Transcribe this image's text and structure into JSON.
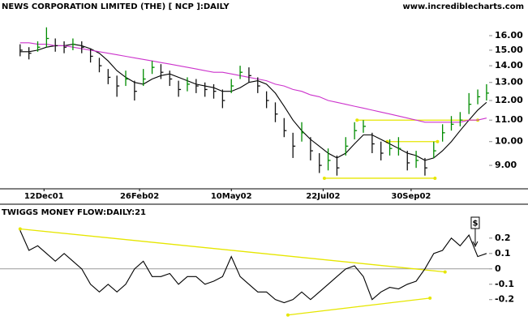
{
  "chart_data": [
    {
      "type": "ohlc",
      "title": "NEWS CORPORATION LIMITED (THE) [ NCP ]:DAILY",
      "source": "www.incrediblecharts.com",
      "x": [
        "2001-11-23",
        "2001-11-30",
        "2001-12-07",
        "2001-12-14",
        "2001-12-21",
        "2001-12-28",
        "2002-01-04",
        "2002-01-11",
        "2002-01-18",
        "2002-01-25",
        "2002-02-01",
        "2002-02-08",
        "2002-02-15",
        "2002-02-22",
        "2002-03-01",
        "2002-03-08",
        "2002-03-15",
        "2002-03-22",
        "2002-03-29",
        "2002-04-05",
        "2002-04-12",
        "2002-04-19",
        "2002-04-26",
        "2002-05-03",
        "2002-05-10",
        "2002-05-17",
        "2002-05-24",
        "2002-05-31",
        "2002-06-07",
        "2002-06-14",
        "2002-06-21",
        "2002-06-28",
        "2002-07-05",
        "2002-07-12",
        "2002-07-19",
        "2002-07-26",
        "2002-08-02",
        "2002-08-09",
        "2002-08-16",
        "2002-08-23",
        "2002-08-30",
        "2002-09-06",
        "2002-09-13",
        "2002-09-20",
        "2002-09-27",
        "2002-10-04",
        "2002-10-11",
        "2002-10-18",
        "2002-10-25",
        "2002-11-01",
        "2002-11-08",
        "2002-11-15",
        "2002-11-22",
        "2002-11-29"
      ],
      "high": [
        15.4,
        15.2,
        15.6,
        16.6,
        15.8,
        15.6,
        15.8,
        15.6,
        15.1,
        14.5,
        13.8,
        13.4,
        13.7,
        13.1,
        13.8,
        14.3,
        14.1,
        13.7,
        13.1,
        13.3,
        13.2,
        13.0,
        12.9,
        12.6,
        13.2,
        14.0,
        13.9,
        13.3,
        12.5,
        11.9,
        11.1,
        10.4,
        10.9,
        10.2,
        9.5,
        9.7,
        9.4,
        10.2,
        10.9,
        11.0,
        10.4,
        10.0,
        10.1,
        10.2,
        9.6,
        9.6,
        9.3,
        10.0,
        10.8,
        11.2,
        11.4,
        12.4,
        12.6,
        12.9
      ],
      "low": [
        14.6,
        14.4,
        14.9,
        15.2,
        14.9,
        14.8,
        15.0,
        14.8,
        14.2,
        13.6,
        12.9,
        12.2,
        12.8,
        12.0,
        12.8,
        13.5,
        13.2,
        12.8,
        12.2,
        12.5,
        12.4,
        12.2,
        12.1,
        11.6,
        12.4,
        13.2,
        13.0,
        12.4,
        11.6,
        10.9,
        10.2,
        9.3,
        10.0,
        9.2,
        8.7,
        8.8,
        8.6,
        9.4,
        10.1,
        10.4,
        9.5,
        9.2,
        9.4,
        9.4,
        8.8,
        8.9,
        8.6,
        9.3,
        10.0,
        10.5,
        10.7,
        11.3,
        11.8,
        12.0
      ],
      "close": [
        15.0,
        14.8,
        15.2,
        15.8,
        15.3,
        15.2,
        15.4,
        15.2,
        14.6,
        14.0,
        13.3,
        12.8,
        13.2,
        12.5,
        13.2,
        13.9,
        13.6,
        13.2,
        12.6,
        12.9,
        12.8,
        12.6,
        12.5,
        12.0,
        12.8,
        13.6,
        13.4,
        12.8,
        12.0,
        11.3,
        10.5,
        9.8,
        10.4,
        9.6,
        9.0,
        9.2,
        8.9,
        9.8,
        10.5,
        10.7,
        9.9,
        9.5,
        9.7,
        9.7,
        9.1,
        9.2,
        8.9,
        9.6,
        10.4,
        10.8,
        11.0,
        11.8,
        12.2,
        12.4
      ],
      "up_color": "#008c00",
      "down_color": "#111111",
      "moving_averages": [
        {
          "color": "#000000",
          "values": [
            14.9,
            14.9,
            15.0,
            15.2,
            15.3,
            15.3,
            15.4,
            15.3,
            15.1,
            14.8,
            14.3,
            13.7,
            13.3,
            13.0,
            12.9,
            13.2,
            13.4,
            13.5,
            13.3,
            13.1,
            12.9,
            12.8,
            12.7,
            12.5,
            12.5,
            12.7,
            13.0,
            13.1,
            12.9,
            12.4,
            11.7,
            11.0,
            10.5,
            10.1,
            9.8,
            9.5,
            9.3,
            9.5,
            9.9,
            10.3,
            10.3,
            10.1,
            9.9,
            9.7,
            9.5,
            9.4,
            9.2,
            9.3,
            9.6,
            10.0,
            10.5,
            11.0,
            11.5,
            11.9
          ]
        },
        {
          "color": "#cc33cc",
          "values": [
            15.5,
            15.5,
            15.4,
            15.4,
            15.3,
            15.3,
            15.2,
            15.1,
            15.0,
            14.9,
            14.8,
            14.7,
            14.6,
            14.5,
            14.4,
            14.3,
            14.2,
            14.1,
            14.0,
            13.9,
            13.8,
            13.7,
            13.6,
            13.6,
            13.5,
            13.4,
            13.3,
            13.2,
            13.1,
            12.9,
            12.8,
            12.6,
            12.5,
            12.3,
            12.2,
            12.0,
            11.9,
            11.8,
            11.7,
            11.6,
            11.5,
            11.4,
            11.3,
            11.2,
            11.1,
            11.0,
            10.9,
            10.9,
            10.9,
            10.9,
            10.9,
            11.0,
            11.0,
            11.1
          ]
        }
      ],
      "trendline_color": "#e6e600",
      "trendlines": [
        {
          "x": [
            "2002-08-18",
            "2002-11-22"
          ],
          "y": [
            11.0,
            11.0
          ]
        },
        {
          "x": [
            "2002-09-11",
            "2002-10-21"
          ],
          "y": [
            10.0,
            10.0
          ]
        },
        {
          "x": [
            "2002-07-23",
            "2002-10-19"
          ],
          "y": [
            8.5,
            8.5
          ]
        }
      ],
      "xlim": [
        "2001-11-07",
        "2002-12-01"
      ],
      "xticks": [
        {
          "value": "2001-12-12",
          "label": "12Dec01"
        },
        {
          "value": "2002-02-26",
          "label": "26Feb02"
        },
        {
          "value": "2002-05-10",
          "label": "10May02"
        },
        {
          "value": "2002-07-22",
          "label": "22Jul02"
        },
        {
          "value": "2002-09-30",
          "label": "30Sep02"
        }
      ],
      "log_scale": true,
      "ylim": [
        8.14,
        17.44
      ],
      "yticks": [
        {
          "value": 16,
          "label": "16.00"
        },
        {
          "value": 15,
          "label": "15.00"
        },
        {
          "value": 14,
          "label": "14.00"
        },
        {
          "value": 13,
          "label": "13.00"
        },
        {
          "value": 12,
          "label": "12.00"
        },
        {
          "value": 11,
          "label": "11.00"
        },
        {
          "value": 10,
          "label": "10.00"
        },
        {
          "value": 9,
          "label": "9.00"
        }
      ],
      "ytick_color": "#00a000"
    },
    {
      "type": "line",
      "title": "TWIGGS MONEY FLOW:DAILY:21",
      "color": "#000000",
      "values": [
        0.25,
        0.12,
        0.15,
        0.1,
        0.05,
        0.1,
        0.05,
        0.0,
        -0.1,
        -0.15,
        -0.1,
        -0.15,
        -0.1,
        0.0,
        0.05,
        -0.05,
        -0.05,
        -0.03,
        -0.1,
        -0.05,
        -0.05,
        -0.1,
        -0.08,
        -0.05,
        0.08,
        -0.05,
        -0.1,
        -0.15,
        -0.15,
        -0.2,
        -0.22,
        -0.2,
        -0.15,
        -0.2,
        -0.15,
        -0.1,
        -0.05,
        0.0,
        0.02,
        -0.05,
        -0.2,
        -0.15,
        -0.12,
        -0.13,
        -0.1,
        -0.08,
        0.0,
        0.1,
        0.12,
        0.2,
        0.15,
        0.22,
        0.08,
        0.1
      ],
      "zero_line": true,
      "trendline_color": "#e6e600",
      "trendlines": [
        {
          "x": [
            "2001-11-23",
            "2002-10-27"
          ],
          "y": [
            0.26,
            -0.02
          ]
        },
        {
          "x": [
            "2002-06-24",
            "2002-10-15"
          ],
          "y": [
            -0.3,
            -0.19
          ]
        }
      ],
      "signals": [
        {
          "text": "$",
          "x": "2002-11-20"
        }
      ],
      "ylim": [
        -0.37,
        0.41
      ],
      "yticks": [
        0.2,
        0.1,
        0,
        -0.1,
        -0.2
      ]
    }
  ]
}
